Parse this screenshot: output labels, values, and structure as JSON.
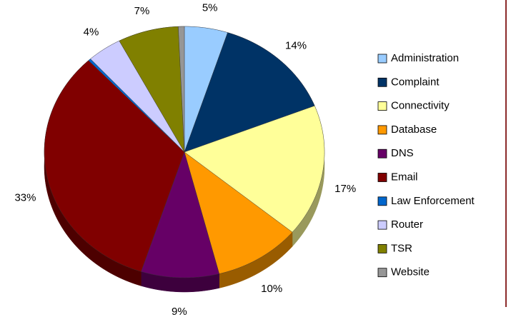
{
  "chart_data": {
    "type": "pie",
    "categories": [
      "Administration",
      "Complaint",
      "Connectivity",
      "Database",
      "DNS",
      "Email",
      "Law Enforcement",
      "Router",
      "TSR",
      "Website"
    ],
    "values": [
      5,
      14,
      17,
      10,
      9,
      33,
      0.3,
      4,
      7,
      0.7
    ],
    "value_labels": [
      "5%",
      "14%",
      "17%",
      "10%",
      "9%",
      "33%",
      null,
      "4%",
      "7%",
      null
    ],
    "colors": [
      "#99ccff",
      "#003366",
      "#ffff99",
      "#ff9900",
      "#660066",
      "#800000",
      "#0066cc",
      "#ccccff",
      "#808000",
      "#969696"
    ],
    "legend": "right"
  }
}
